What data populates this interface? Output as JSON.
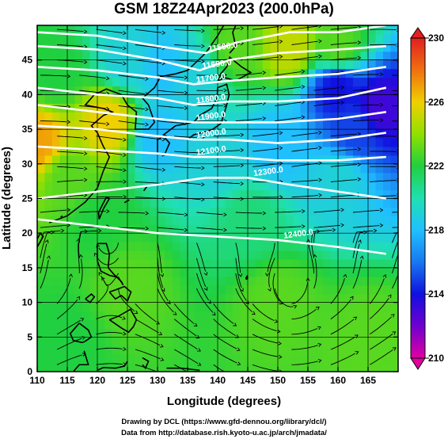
{
  "title": "GSM 18Z24Apr2023 (200.0hPa)",
  "x_axis": {
    "label": "Longitude (degrees)",
    "ticks": [
      "110",
      "115",
      "120",
      "125",
      "130",
      "135",
      "140",
      "145",
      "150",
      "155",
      "160",
      "165"
    ],
    "range": [
      110,
      170
    ]
  },
  "y_axis": {
    "label": "Latitude  (degrees)",
    "ticks": [
      "0",
      "5",
      "10",
      "15",
      "20",
      "25",
      "30",
      "35",
      "40",
      "45"
    ],
    "range": [
      0,
      50
    ]
  },
  "colorbar": {
    "ticks": [
      "230",
      "226",
      "222",
      "218",
      "214",
      "210"
    ],
    "range": [
      210,
      230
    ],
    "colors": [
      "#e000a0",
      "#7000d0",
      "#1010e0",
      "#1878f0",
      "#20c0ff",
      "#20e0b0",
      "#20d040",
      "#90e000",
      "#f0d000",
      "#f07010",
      "#e02020"
    ]
  },
  "contours": {
    "labels": [
      "11500.0",
      "11600.0",
      "11700.0",
      "11800.0",
      "11900.0",
      "12000.0",
      "12100.0",
      "12300.0",
      "12400.0"
    ]
  },
  "credits": {
    "line1": "Drawing by DCL (https://www.gfd-dennou.org/library/dcl/)",
    "line2": "Data from http://database.rish.kyoto-u.ac.jp/arch/jmadata/"
  },
  "chart_data": {
    "type": "heatmap",
    "title": "GSM 18Z24Apr2023 (200.0hPa)",
    "xlabel": "Longitude (degrees)",
    "ylabel": "Latitude  (degrees)",
    "xlim": [
      110,
      170
    ],
    "ylim": [
      0,
      50
    ],
    "colorbar_range": [
      210,
      230
    ],
    "colorbar_ticks": [
      210,
      214,
      218,
      222,
      226,
      230
    ],
    "temperature_anchors": [
      {
        "lon": 110,
        "lat": 33,
        "value": 227
      },
      {
        "lon": 122,
        "lat": 36,
        "value": 226
      },
      {
        "lon": 113,
        "lat": 43,
        "value": 222
      },
      {
        "lon": 125,
        "lat": 45,
        "value": 219
      },
      {
        "lon": 131,
        "lat": 44,
        "value": 218
      },
      {
        "lon": 136,
        "lat": 43,
        "value": 219
      },
      {
        "lon": 130,
        "lat": 34,
        "value": 218
      },
      {
        "lon": 140,
        "lat": 30,
        "value": 219
      },
      {
        "lon": 143,
        "lat": 47,
        "value": 223
      },
      {
        "lon": 152,
        "lat": 47,
        "value": 225
      },
      {
        "lon": 160,
        "lat": 47,
        "value": 223
      },
      {
        "lon": 160,
        "lat": 41,
        "value": 214
      },
      {
        "lon": 167,
        "lat": 38,
        "value": 213
      },
      {
        "lon": 163,
        "lat": 35,
        "value": 215
      },
      {
        "lon": 150,
        "lat": 33,
        "value": 218
      },
      {
        "lon": 160,
        "lat": 28,
        "value": 219
      },
      {
        "lon": 145,
        "lat": 22,
        "value": 221
      },
      {
        "lon": 120,
        "lat": 22,
        "value": 222
      },
      {
        "lon": 115,
        "lat": 28,
        "value": 223
      },
      {
        "lon": 125,
        "lat": 12,
        "value": 223
      },
      {
        "lon": 150,
        "lat": 10,
        "value": 223
      },
      {
        "lon": 115,
        "lat": 5,
        "value": 222
      },
      {
        "lon": 165,
        "lat": 5,
        "value": 223
      }
    ],
    "geopotential_contours": [
      {
        "label": "11500.0",
        "points": [
          [
            110,
            49
          ],
          [
            120,
            48.5
          ],
          [
            130,
            47
          ],
          [
            138,
            46
          ],
          [
            143,
            47.5
          ],
          [
            152,
            49
          ],
          [
            160,
            49
          ],
          [
            168,
            50
          ]
        ]
      },
      {
        "label": "11600.0",
        "points": [
          [
            110,
            47
          ],
          [
            120,
            46.5
          ],
          [
            130,
            45
          ],
          [
            137,
            43.5
          ],
          [
            142,
            45
          ],
          [
            150,
            46
          ],
          [
            160,
            46.5
          ],
          [
            168,
            47
          ]
        ]
      },
      {
        "label": "11700.0",
        "points": [
          [
            110,
            44
          ],
          [
            120,
            43.5
          ],
          [
            130,
            42.5
          ],
          [
            136,
            41.5
          ],
          [
            142,
            42
          ],
          [
            150,
            42.5
          ],
          [
            160,
            43
          ],
          [
            168,
            44
          ]
        ]
      },
      {
        "label": "11800.0",
        "points": [
          [
            110,
            41
          ],
          [
            120,
            40
          ],
          [
            130,
            39.5
          ],
          [
            136,
            38.5
          ],
          [
            142,
            39
          ],
          [
            150,
            39
          ],
          [
            160,
            39.5
          ],
          [
            168,
            41
          ]
        ]
      },
      {
        "label": "11900.0",
        "points": [
          [
            110,
            38.5
          ],
          [
            120,
            37.5
          ],
          [
            130,
            36.5
          ],
          [
            136,
            36
          ],
          [
            142,
            36
          ],
          [
            150,
            36
          ],
          [
            160,
            36.5
          ],
          [
            168,
            37.5
          ]
        ]
      },
      {
        "label": "12000.0",
        "points": [
          [
            110,
            35.5
          ],
          [
            120,
            35
          ],
          [
            130,
            34
          ],
          [
            136,
            33.5
          ],
          [
            142,
            33.5
          ],
          [
            150,
            33
          ],
          [
            160,
            33.5
          ],
          [
            168,
            34.5
          ]
        ]
      },
      {
        "label": "12100.0",
        "points": [
          [
            110,
            32.5
          ],
          [
            120,
            32
          ],
          [
            130,
            31.5
          ],
          [
            136,
            31
          ],
          [
            142,
            31
          ],
          [
            150,
            30.5
          ],
          [
            160,
            30.5
          ],
          [
            168,
            31
          ]
        ]
      },
      {
        "label": "12300.0",
        "points": [
          [
            110,
            25
          ],
          [
            120,
            26
          ],
          [
            130,
            27
          ],
          [
            138,
            28
          ],
          [
            145,
            28
          ],
          [
            152,
            27
          ],
          [
            160,
            26
          ],
          [
            168,
            25
          ]
        ]
      },
      {
        "label": "12400.0",
        "points": [
          [
            110,
            22
          ],
          [
            120,
            21
          ],
          [
            130,
            20
          ],
          [
            140,
            19.5
          ],
          [
            150,
            19
          ],
          [
            160,
            18
          ],
          [
            168,
            17
          ]
        ]
      }
    ]
  }
}
